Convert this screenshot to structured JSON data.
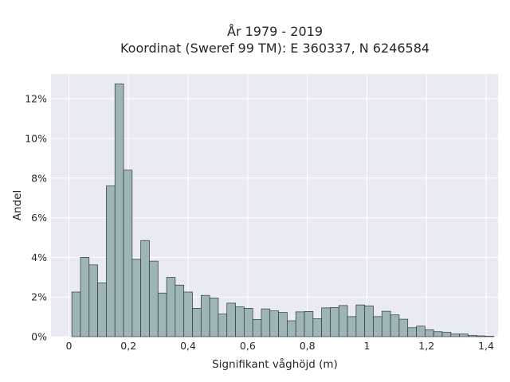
{
  "chart_data": {
    "type": "bar",
    "title": [
      "År 1979 - 2019",
      "Koordinat (Sweref 99 TM): E 360337, N 6246584"
    ],
    "xlabel": "Signifikant våghöjd (m)",
    "ylabel": "Andel",
    "xlim": [
      -0.06,
      1.44
    ],
    "ylim": [
      0,
      0.1325
    ],
    "x_ticks": [
      {
        "value": 0,
        "label": "0"
      },
      {
        "value": 0.2,
        "label": "0,2"
      },
      {
        "value": 0.4,
        "label": "0,4"
      },
      {
        "value": 0.6,
        "label": "0,6"
      },
      {
        "value": 0.8,
        "label": "0,8"
      },
      {
        "value": 1.0,
        "label": "1"
      },
      {
        "value": 1.2,
        "label": "1,2"
      },
      {
        "value": 1.4,
        "label": "1,4"
      }
    ],
    "y_ticks": [
      {
        "value": 0,
        "label": "0%"
      },
      {
        "value": 0.02,
        "label": "2%"
      },
      {
        "value": 0.04,
        "label": "4%"
      },
      {
        "value": 0.06,
        "label": "6%"
      },
      {
        "value": 0.08,
        "label": "8%"
      },
      {
        "value": 0.1,
        "label": "10%"
      },
      {
        "value": 0.12,
        "label": "12%"
      }
    ],
    "bins_start": 0.01,
    "bin_width": 0.0289,
    "values": [
      0.0225,
      0.04,
      0.0362,
      0.0271,
      0.076,
      0.1275,
      0.084,
      0.039,
      0.0485,
      0.0381,
      0.022,
      0.0299,
      0.026,
      0.0225,
      0.0143,
      0.0208,
      0.0195,
      0.0114,
      0.0169,
      0.015,
      0.0143,
      0.0087,
      0.014,
      0.013,
      0.0122,
      0.008,
      0.0125,
      0.0127,
      0.009,
      0.0145,
      0.0147,
      0.0157,
      0.0101,
      0.016,
      0.0155,
      0.0101,
      0.0128,
      0.011,
      0.0088,
      0.0045,
      0.0053,
      0.0035,
      0.0025,
      0.0022,
      0.0013,
      0.0013,
      0.0006,
      0.0004,
      0.0002
    ],
    "colors": {
      "bar": "#9db5b5",
      "edge": "#2e3636",
      "background": "#eaeaf2",
      "grid": "#ffffff"
    },
    "grid": true
  }
}
